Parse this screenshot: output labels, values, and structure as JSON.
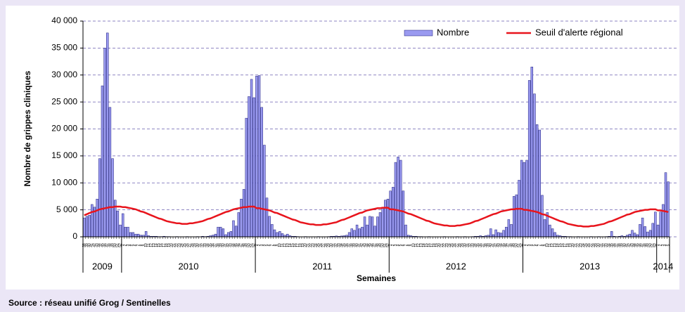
{
  "chart_data": {
    "type": "bar_line",
    "x_label": "Semaines",
    "y_label": "Nombre de grippes cliniques",
    "source": "Source : réseau unifié Grog / Sentinelles",
    "year_labels": [
      "2009",
      "2010",
      "2011",
      "2012",
      "2013",
      "2014"
    ],
    "categories": [
      "38",
      "39",
      "40",
      "41",
      "42",
      "43",
      "44",
      "45",
      "46",
      "47",
      "48",
      "49",
      "50",
      "51",
      "52",
      "1",
      "2",
      "3",
      "4",
      "5",
      "6",
      "7",
      "8",
      "9",
      "10",
      "11",
      "12",
      "13",
      "14",
      "15",
      "16",
      "17",
      "18",
      "19",
      "20",
      "21",
      "22",
      "23",
      "24",
      "25",
      "26",
      "27",
      "28",
      "29",
      "30",
      "31",
      "32",
      "33",
      "34",
      "35",
      "36",
      "37",
      "38",
      "39",
      "40",
      "41",
      "42",
      "43",
      "44",
      "45",
      "46",
      "47",
      "48",
      "49",
      "50",
      "51",
      "52",
      "1",
      "2",
      "3",
      "4",
      "5",
      "6",
      "7",
      "8",
      "9",
      "10",
      "11",
      "12",
      "13",
      "14",
      "15",
      "16",
      "17",
      "18",
      "19",
      "20",
      "21",
      "22",
      "23",
      "24",
      "25",
      "26",
      "27",
      "28",
      "29",
      "30",
      "31",
      "32",
      "33",
      "34",
      "35",
      "36",
      "37",
      "38",
      "39",
      "40",
      "41",
      "42",
      "43",
      "44",
      "45",
      "46",
      "47",
      "48",
      "49",
      "50",
      "51",
      "52",
      "1",
      "2",
      "3",
      "4",
      "5",
      "6",
      "7",
      "8",
      "9",
      "10",
      "11",
      "12",
      "13",
      "14",
      "15",
      "16",
      "17",
      "18",
      "19",
      "20",
      "21",
      "22",
      "23",
      "24",
      "25",
      "26",
      "27",
      "28",
      "29",
      "30",
      "31",
      "32",
      "33",
      "34",
      "35",
      "36",
      "37",
      "38",
      "39",
      "40",
      "41",
      "42",
      "43",
      "44",
      "45",
      "46",
      "47",
      "48",
      "49",
      "50",
      "51",
      "52",
      "1",
      "2",
      "3",
      "4",
      "5",
      "6",
      "7",
      "8",
      "9",
      "10",
      "11",
      "12",
      "13",
      "14",
      "15",
      "16",
      "17",
      "18",
      "19",
      "20",
      "21",
      "22",
      "23",
      "24",
      "25",
      "26",
      "27",
      "28",
      "29",
      "30",
      "31",
      "32",
      "33",
      "34",
      "35",
      "36",
      "37",
      "38",
      "39",
      "40",
      "41",
      "42",
      "43",
      "44",
      "45",
      "46",
      "47",
      "48",
      "49",
      "50",
      "51",
      "52",
      "1",
      "2",
      "3",
      "4",
      "5"
    ],
    "series": [
      {
        "name": "Nombre",
        "kind": "bar",
        "color": "#9a9af0",
        "values": [
          3500,
          3800,
          4000,
          6000,
          5500,
          7000,
          14500,
          28000,
          35000,
          37800,
          24000,
          14500,
          6800,
          4800,
          2200,
          4300,
          1800,
          1800,
          800,
          800,
          500,
          500,
          300,
          300,
          1000,
          200,
          100,
          100,
          100,
          50,
          50,
          100,
          50,
          50,
          0,
          0,
          50,
          0,
          0,
          0,
          50,
          0,
          0,
          0,
          50,
          0,
          100,
          50,
          100,
          200,
          300,
          500,
          1800,
          1800,
          1500,
          400,
          800,
          1000,
          3000,
          2000,
          4500,
          7000,
          8800,
          22000,
          26000,
          29200,
          25800,
          29800,
          29900,
          24000,
          17000,
          7200,
          3800,
          2300,
          1300,
          800,
          1000,
          600,
          300,
          500,
          200,
          100,
          100,
          50,
          0,
          0,
          50,
          0,
          0,
          0,
          0,
          50,
          0,
          0,
          0,
          50,
          100,
          100,
          150,
          100,
          150,
          200,
          300,
          800,
          1500,
          1200,
          2200,
          1500,
          1800,
          3700,
          2200,
          3800,
          3700,
          2000,
          3700,
          4500,
          5500,
          6800,
          7000,
          8500,
          9200,
          13800,
          14800,
          14200,
          8500,
          2200,
          300,
          200,
          100,
          100,
          50,
          50,
          0,
          0,
          50,
          0,
          0,
          0,
          0,
          0,
          50,
          0,
          0,
          0,
          0,
          50,
          0,
          0,
          50,
          0,
          0,
          50,
          100,
          100,
          200,
          100,
          200,
          300,
          1500,
          400,
          1300,
          800,
          700,
          1200,
          1800,
          3200,
          2300,
          7500,
          7800,
          10500,
          14200,
          13800,
          14200,
          29000,
          31500,
          26500,
          20800,
          19800,
          7700,
          3200,
          4500,
          2200,
          1500,
          800,
          300,
          200,
          100,
          100,
          50,
          50,
          0,
          0,
          50,
          0,
          0,
          0,
          0,
          50,
          0,
          0,
          50,
          0,
          0,
          50,
          100,
          1000,
          100,
          50,
          100,
          200,
          100,
          300,
          500,
          1200,
          700,
          400,
          2300,
          3500,
          1900,
          900,
          1200,
          2500,
          4600,
          2200,
          4600,
          6000,
          11900,
          10200
        ]
      },
      {
        "name": "Seuil d'alerte régional",
        "kind": "line",
        "color": "#e8141c",
        "values": [
          4000,
          4200,
          4400,
          4600,
          4700,
          4900,
          5100,
          5200,
          5300,
          5400,
          5500,
          5500,
          5600,
          5600,
          5600,
          5500,
          5500,
          5400,
          5300,
          5200,
          5100,
          4900,
          4700,
          4600,
          4400,
          4200,
          4000,
          3800,
          3600,
          3400,
          3300,
          3100,
          2900,
          2800,
          2700,
          2600,
          2500,
          2500,
          2400,
          2400,
          2400,
          2500,
          2500,
          2600,
          2700,
          2800,
          2900,
          3100,
          3300,
          3400,
          3600,
          3800,
          4000,
          4200,
          4400,
          4600,
          4700,
          4900,
          5100,
          5200,
          5300,
          5400,
          5500,
          5500,
          5600,
          5600,
          5600,
          5300,
          5300,
          5200,
          5100,
          5000,
          4900,
          4700,
          4500,
          4400,
          4200,
          4000,
          3800,
          3600,
          3400,
          3200,
          3100,
          2900,
          2700,
          2600,
          2500,
          2400,
          2300,
          2300,
          2200,
          2200,
          2200,
          2300,
          2300,
          2400,
          2500,
          2600,
          2700,
          2900,
          3100,
          3200,
          3400,
          3600,
          3800,
          4000,
          4200,
          4400,
          4500,
          4700,
          4900,
          5000,
          5100,
          5200,
          5300,
          5300,
          5400,
          5400,
          5400,
          5100,
          5100,
          5000,
          4900,
          4800,
          4700,
          4500,
          4300,
          4200,
          4000,
          3800,
          3600,
          3400,
          3200,
          3000,
          2900,
          2700,
          2500,
          2400,
          2300,
          2200,
          2100,
          2100,
          2000,
          2000,
          2000,
          2100,
          2100,
          2200,
          2300,
          2400,
          2500,
          2700,
          2900,
          3000,
          3200,
          3400,
          3600,
          3800,
          4000,
          4200,
          4300,
          4500,
          4700,
          4800,
          4900,
          5000,
          5100,
          5100,
          5200,
          5200,
          5200,
          5000,
          5000,
          4900,
          4800,
          4700,
          4600,
          4400,
          4200,
          4100,
          3900,
          3700,
          3500,
          3300,
          3100,
          2900,
          2800,
          2600,
          2400,
          2300,
          2200,
          2100,
          2000,
          2000,
          1900,
          1900,
          1900,
          2000,
          2000,
          2100,
          2200,
          2300,
          2400,
          2600,
          2800,
          2900,
          3100,
          3300,
          3500,
          3700,
          3900,
          4100,
          4200,
          4400,
          4600,
          4700,
          4800,
          4900,
          5000,
          5000,
          5100,
          5100,
          5100,
          4900,
          4900,
          4800,
          4700,
          4600
        ]
      }
    ],
    "ylim": [
      0,
      40000
    ],
    "yticks": [
      0,
      {
        "value": 5000,
        "label": "5 000"
      },
      {
        "value": 10000,
        "label": "10 000"
      },
      {
        "value": 15000,
        "label": "15 000"
      },
      {
        "value": 20000,
        "label": "20 000"
      },
      {
        "value": 25000,
        "label": "25 000"
      },
      {
        "value": 30000,
        "label": "30 000"
      },
      {
        "value": 35000,
        "label": "35 000"
      },
      {
        "value": 40000,
        "label": "40 000"
      }
    ],
    "grid": true,
    "legend": "top-right"
  }
}
